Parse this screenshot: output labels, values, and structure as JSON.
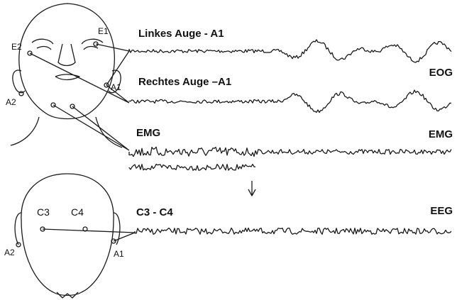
{
  "face": {
    "electrodes": [
      "E1",
      "E2",
      "A1",
      "A2"
    ]
  },
  "channels": [
    {
      "label": "Linkes Auge - A1"
    },
    {
      "label": "Rechtes Auge –A1"
    },
    {
      "label": "EMG"
    },
    {
      "label": "C3 - C4"
    }
  ],
  "signal_types": [
    "EOG",
    "EMG",
    "EEG"
  ],
  "head": {
    "electrodes": [
      "C3",
      "C4",
      "A2",
      "A1"
    ]
  }
}
